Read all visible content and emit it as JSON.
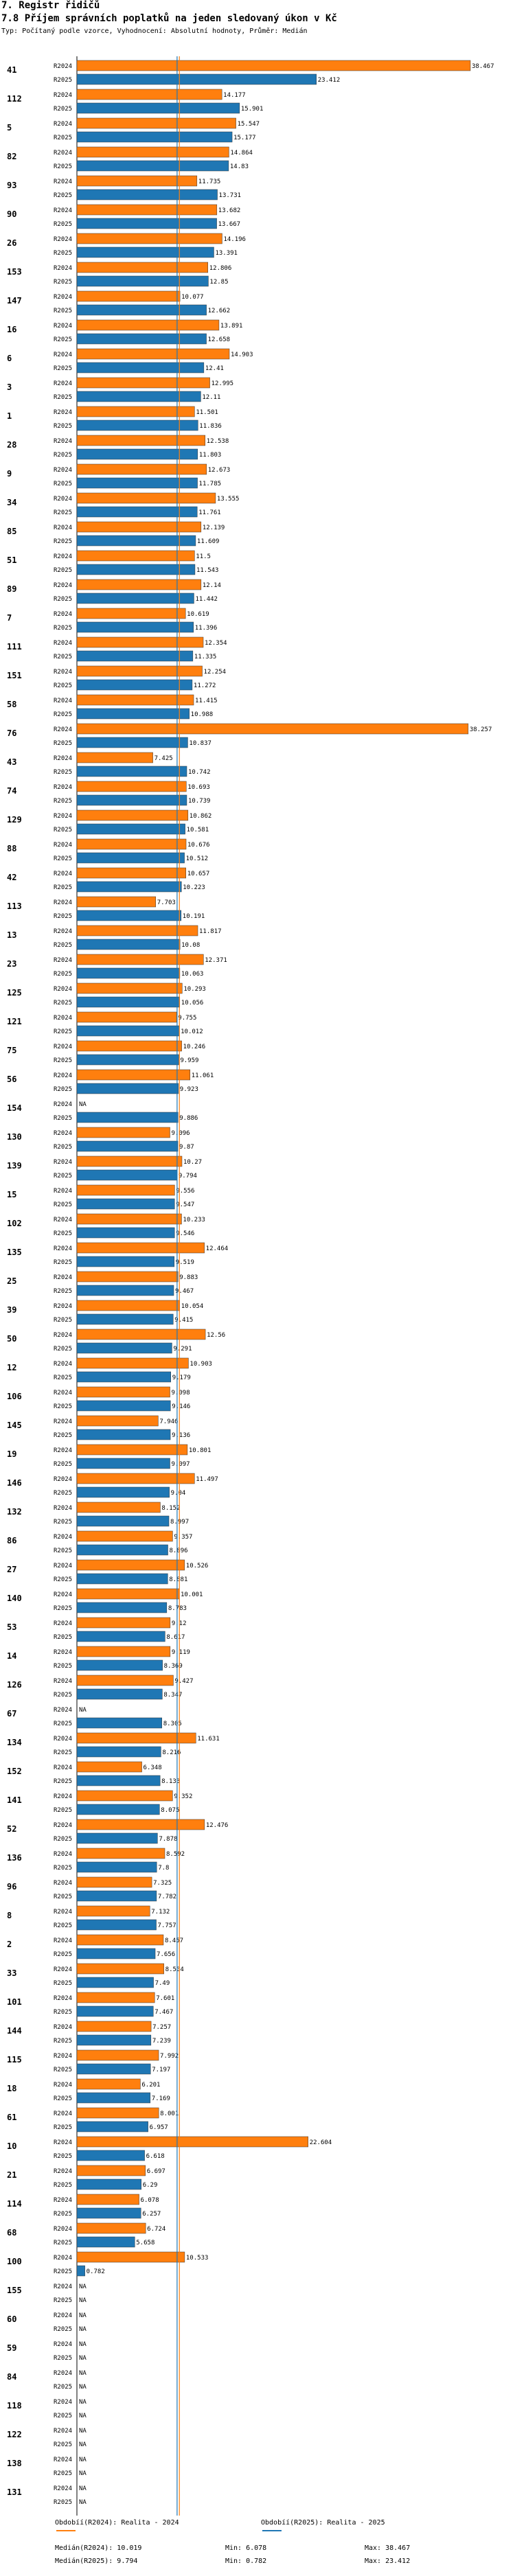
{
  "header": {
    "chapter": "7. Registr řidičů",
    "title": "7.8 Příjem správních poplatků na jeden sledovaný úkon v Kč",
    "subtitle": "Typ: Počítaný podle vzorce, Vyhodnocení: Absolutní hodnoty, Průměr: Medián"
  },
  "colors": {
    "r2024": "#ff7f0e",
    "r2025": "#1f77b4",
    "median_2024": "#ff7f0e",
    "median_2025": "#1f77b4"
  },
  "chart_data": {
    "type": "bar",
    "orientation": "horizontal",
    "title": "7.8 Příjem správních poplatků na jeden sledovaný úkon v Kč",
    "series_names": [
      "R2024",
      "R2025"
    ],
    "missing_label": "NA",
    "xlim": [
      0,
      38.467
    ],
    "groups": [
      {
        "id": "41",
        "r2024": 38.467,
        "r2025": 23.412
      },
      {
        "id": "112",
        "r2024": 14.177,
        "r2025": 15.901
      },
      {
        "id": "5",
        "r2024": 15.547,
        "r2025": 15.177
      },
      {
        "id": "82",
        "r2024": 14.864,
        "r2025": 14.83
      },
      {
        "id": "93",
        "r2024": 11.735,
        "r2025": 13.731
      },
      {
        "id": "90",
        "r2024": 13.682,
        "r2025": 13.667
      },
      {
        "id": "26",
        "r2024": 14.196,
        "r2025": 13.391
      },
      {
        "id": "153",
        "r2024": 12.806,
        "r2025": 12.85
      },
      {
        "id": "147",
        "r2024": 10.077,
        "r2025": 12.662
      },
      {
        "id": "16",
        "r2024": 13.891,
        "r2025": 12.658
      },
      {
        "id": "6",
        "r2024": 14.903,
        "r2025": 12.41
      },
      {
        "id": "3",
        "r2024": 12.995,
        "r2025": 12.11
      },
      {
        "id": "1",
        "r2024": 11.501,
        "r2025": 11.836
      },
      {
        "id": "28",
        "r2024": 12.538,
        "r2025": 11.803
      },
      {
        "id": "9",
        "r2024": 12.673,
        "r2025": 11.785
      },
      {
        "id": "34",
        "r2024": 13.555,
        "r2025": 11.761
      },
      {
        "id": "85",
        "r2024": 12.139,
        "r2025": 11.609
      },
      {
        "id": "51",
        "r2024": 11.5,
        "r2025": 11.543
      },
      {
        "id": "89",
        "r2024": 12.14,
        "r2025": 11.442
      },
      {
        "id": "7",
        "r2024": 10.619,
        "r2025": 11.396
      },
      {
        "id": "111",
        "r2024": 12.354,
        "r2025": 11.335
      },
      {
        "id": "151",
        "r2024": 12.254,
        "r2025": 11.272
      },
      {
        "id": "58",
        "r2024": 11.415,
        "r2025": 10.988
      },
      {
        "id": "76",
        "r2024": 38.257,
        "r2025": 10.837
      },
      {
        "id": "43",
        "r2024": 7.425,
        "r2025": 10.742
      },
      {
        "id": "74",
        "r2024": 10.693,
        "r2025": 10.739
      },
      {
        "id": "129",
        "r2024": 10.862,
        "r2025": 10.581
      },
      {
        "id": "88",
        "r2024": 10.676,
        "r2025": 10.512
      },
      {
        "id": "42",
        "r2024": 10.657,
        "r2025": 10.223
      },
      {
        "id": "113",
        "r2024": 7.703,
        "r2025": 10.191
      },
      {
        "id": "13",
        "r2024": 11.817,
        "r2025": 10.08
      },
      {
        "id": "23",
        "r2024": 12.371,
        "r2025": 10.063
      },
      {
        "id": "125",
        "r2024": 10.293,
        "r2025": 10.056
      },
      {
        "id": "121",
        "r2024": 9.755,
        "r2025": 10.012
      },
      {
        "id": "75",
        "r2024": 10.246,
        "r2025": 9.959
      },
      {
        "id": "56",
        "r2024": 11.061,
        "r2025": 9.923
      },
      {
        "id": "154",
        "r2024": null,
        "r2025": 9.886
      },
      {
        "id": "130",
        "r2024": 9.096,
        "r2025": 9.87
      },
      {
        "id": "139",
        "r2024": 10.27,
        "r2025": 9.794
      },
      {
        "id": "15",
        "r2024": 9.556,
        "r2025": 9.547
      },
      {
        "id": "102",
        "r2024": 10.233,
        "r2025": 9.546
      },
      {
        "id": "135",
        "r2024": 12.464,
        "r2025": 9.519
      },
      {
        "id": "25",
        "r2024": 9.883,
        "r2025": 9.467
      },
      {
        "id": "39",
        "r2024": 10.054,
        "r2025": 9.415
      },
      {
        "id": "50",
        "r2024": 12.56,
        "r2025": 9.291
      },
      {
        "id": "12",
        "r2024": 10.903,
        "r2025": 9.179
      },
      {
        "id": "106",
        "r2024": 9.098,
        "r2025": 9.146
      },
      {
        "id": "145",
        "r2024": 7.946,
        "r2025": 9.136
      },
      {
        "id": "19",
        "r2024": 10.801,
        "r2025": 9.097
      },
      {
        "id": "146",
        "r2024": 11.497,
        "r2025": 9.04
      },
      {
        "id": "132",
        "r2024": 8.152,
        "r2025": 8.997
      },
      {
        "id": "86",
        "r2024": 9.357,
        "r2025": 8.896
      },
      {
        "id": "27",
        "r2024": 10.526,
        "r2025": 8.881
      },
      {
        "id": "140",
        "r2024": 10.001,
        "r2025": 8.783
      },
      {
        "id": "53",
        "r2024": 9.12,
        "r2025": 8.617
      },
      {
        "id": "14",
        "r2024": 9.119,
        "r2025": 8.369
      },
      {
        "id": "126",
        "r2024": 9.427,
        "r2025": 8.347
      },
      {
        "id": "67",
        "r2024": null,
        "r2025": 8.305
      },
      {
        "id": "134",
        "r2024": 11.631,
        "r2025": 8.216
      },
      {
        "id": "152",
        "r2024": 6.348,
        "r2025": 8.133
      },
      {
        "id": "141",
        "r2024": 9.352,
        "r2025": 8.075
      },
      {
        "id": "52",
        "r2024": 12.476,
        "r2025": 7.878
      },
      {
        "id": "136",
        "r2024": 8.592,
        "r2025": 7.8
      },
      {
        "id": "96",
        "r2024": 7.325,
        "r2025": 7.782
      },
      {
        "id": "8",
        "r2024": 7.132,
        "r2025": 7.757
      },
      {
        "id": "2",
        "r2024": 8.457,
        "r2025": 7.656
      },
      {
        "id": "33",
        "r2024": 8.504,
        "r2025": 7.49
      },
      {
        "id": "101",
        "r2024": 7.601,
        "r2025": 7.467
      },
      {
        "id": "144",
        "r2024": 7.257,
        "r2025": 7.239
      },
      {
        "id": "115",
        "r2024": 7.992,
        "r2025": 7.197
      },
      {
        "id": "18",
        "r2024": 6.201,
        "r2025": 7.169
      },
      {
        "id": "61",
        "r2024": 8.001,
        "r2025": 6.957
      },
      {
        "id": "10",
        "r2024": 22.604,
        "r2025": 6.618
      },
      {
        "id": "21",
        "r2024": 6.697,
        "r2025": 6.29
      },
      {
        "id": "114",
        "r2024": 6.078,
        "r2025": 6.257
      },
      {
        "id": "68",
        "r2024": 6.724,
        "r2025": 5.658
      },
      {
        "id": "100",
        "r2024": 10.533,
        "r2025": 0.782
      },
      {
        "id": "155",
        "r2024": null,
        "r2025": null
      },
      {
        "id": "60",
        "r2024": null,
        "r2025": null
      },
      {
        "id": "59",
        "r2024": null,
        "r2025": null
      },
      {
        "id": "84",
        "r2024": null,
        "r2025": null
      },
      {
        "id": "118",
        "r2024": null,
        "r2025": null
      },
      {
        "id": "122",
        "r2024": null,
        "r2025": null
      },
      {
        "id": "138",
        "r2024": null,
        "r2025": null
      },
      {
        "id": "131",
        "r2024": null,
        "r2025": null
      }
    ],
    "median_2024": 10.019,
    "median_2025": 9.794,
    "reference_lines": [
      {
        "label": "Obdobíí(R2024): Realita - 2024"
      },
      {
        "label": "Obdobíí(R2025): Realita - 2025"
      }
    ],
    "summary": {
      "median_2024_label": "Medián(R2024): 10.019",
      "median_2025_label": "Medián(R2025): 9.794",
      "min_2024_label": "Min: 6.078",
      "min_2025_label": "Min: 0.782",
      "max_2024_label": "Max: 38.467",
      "max_2025_label": "Max: 23.412"
    }
  }
}
